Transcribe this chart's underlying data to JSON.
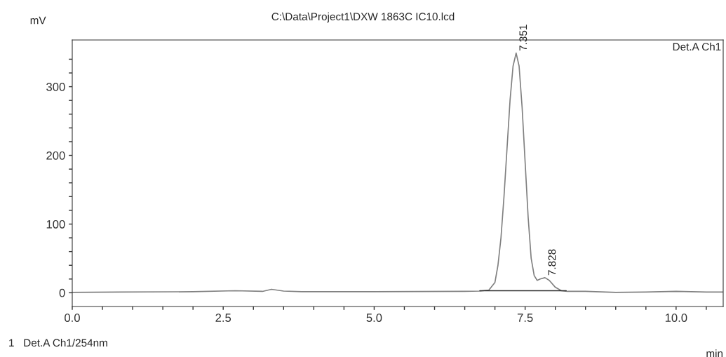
{
  "chart_data": {
    "type": "line",
    "title": "C:\\Data\\Project1\\DXW 1863C IC10.lcd",
    "xlabel": "min",
    "ylabel": "mV",
    "xlim": [
      0,
      10.78
    ],
    "ylim": [
      -20,
      368
    ],
    "xticks": [
      {
        "value": 0,
        "label": "0.0"
      },
      {
        "value": 0.5,
        "label": null
      },
      {
        "value": 1,
        "label": null
      },
      {
        "value": 1.5,
        "label": null
      },
      {
        "value": 2,
        "label": null
      },
      {
        "value": 2.5,
        "label": "2.5"
      },
      {
        "value": 3,
        "label": null
      },
      {
        "value": 3.5,
        "label": null
      },
      {
        "value": 4,
        "label": null
      },
      {
        "value": 4.5,
        "label": null
      },
      {
        "value": 5,
        "label": "5.0"
      },
      {
        "value": 5.5,
        "label": null
      },
      {
        "value": 6,
        "label": null
      },
      {
        "value": 6.5,
        "label": null
      },
      {
        "value": 7,
        "label": null
      },
      {
        "value": 7.5,
        "label": "7.5"
      },
      {
        "value": 8,
        "label": null
      },
      {
        "value": 8.5,
        "label": null
      },
      {
        "value": 9,
        "label": null
      },
      {
        "value": 9.5,
        "label": null
      },
      {
        "value": 10,
        "label": "10.0"
      },
      {
        "value": 10.5,
        "label": null
      }
    ],
    "yticks": [
      0,
      {
        "value": 20,
        "label": null
      },
      {
        "value": 40,
        "label": null
      },
      {
        "value": 60,
        "label": null
      },
      {
        "value": 80,
        "label": null
      },
      100,
      {
        "value": 120,
        "label": null
      },
      {
        "value": 140,
        "label": null
      },
      {
        "value": 160,
        "label": null
      },
      {
        "value": 180,
        "label": null
      },
      200,
      {
        "value": 220,
        "label": null
      },
      {
        "value": 240,
        "label": null
      },
      {
        "value": 260,
        "label": null
      },
      {
        "value": 280,
        "label": null
      },
      300,
      {
        "value": 320,
        "label": null
      },
      {
        "value": 340,
        "label": null
      }
    ],
    "grid": false,
    "marker": "none",
    "line_style": "solid",
    "series": [
      {
        "color": "#808080",
        "x": [
          0,
          0.8,
          2.0,
          2.7,
          3.15,
          3.3,
          3.5,
          3.8,
          5.0,
          6.5,
          6.75,
          6.9,
          7.0,
          7.05,
          7.1,
          7.15,
          7.2,
          7.25,
          7.3,
          7.351,
          7.4,
          7.45,
          7.5,
          7.55,
          7.6,
          7.65,
          7.7,
          7.75,
          7.828,
          7.9,
          8.0,
          8.1,
          8.2,
          8.5,
          9.0,
          9.5,
          10.0,
          10.5,
          10.78
        ],
        "values": [
          0.5,
          1,
          1.5,
          3,
          2,
          5,
          2.5,
          1.5,
          1.5,
          2,
          2.5,
          4,
          15,
          40,
          80,
          140,
          210,
          280,
          330,
          349,
          330,
          270,
          190,
          110,
          50,
          25,
          18,
          20,
          22,
          18,
          8,
          3,
          2,
          2,
          0.5,
          1,
          2,
          1,
          1
        ]
      },
      {
        "color": "#303030",
        "x": [
          6.75,
          7.72,
          8.18
        ],
        "values": [
          3,
          3,
          3
        ]
      }
    ],
    "annotations": [
      "Det.A Ch1",
      "1   Det.A Ch1/254nm",
      {
        "text": "7.351",
        "x": 7.351,
        "y": 349
      },
      {
        "text": "7.828",
        "x": 7.828,
        "y": 22
      }
    ]
  }
}
